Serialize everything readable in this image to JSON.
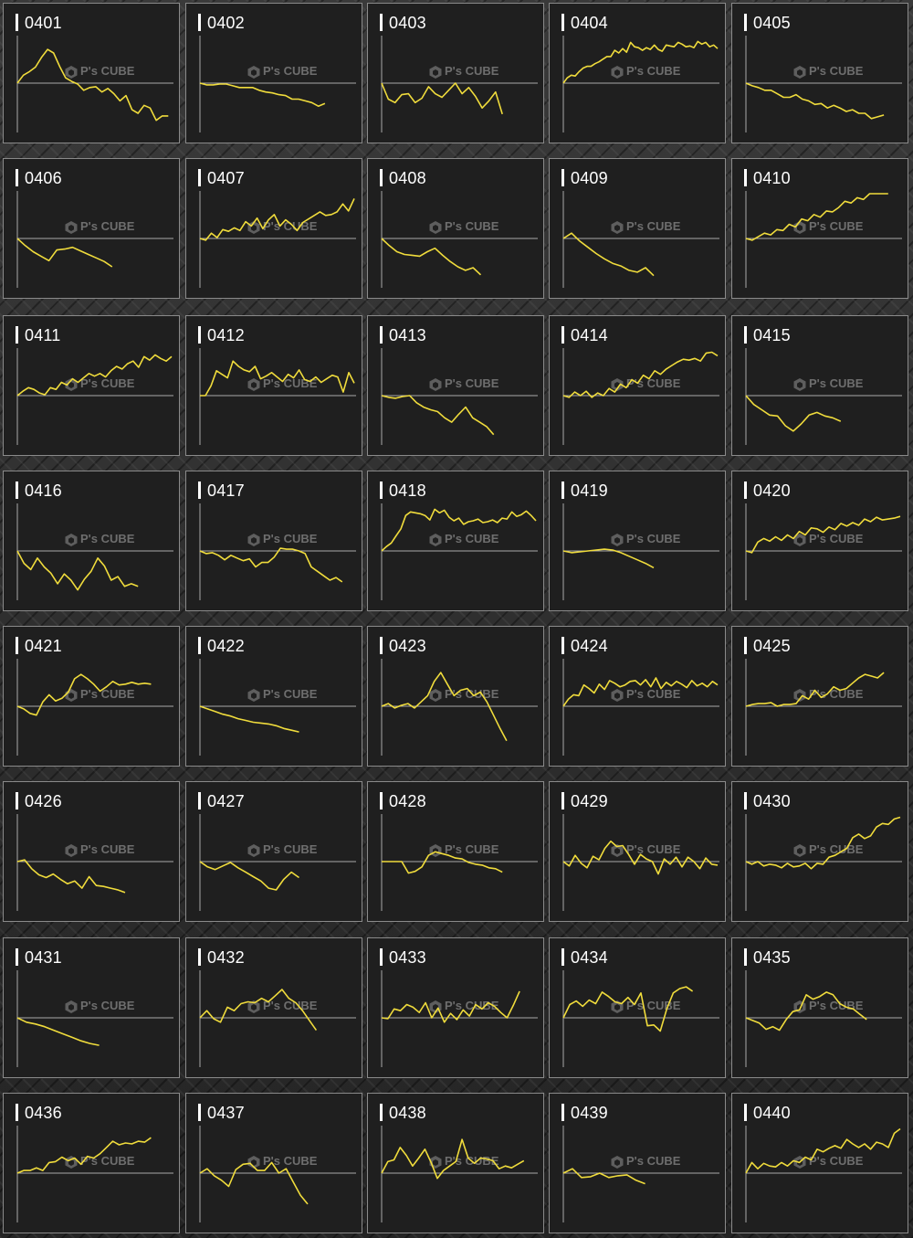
{
  "page": {
    "background": "#2a2a2a"
  },
  "panel_style": {
    "panel_bg": "#1f1f1f",
    "line_color": "#f0dc3c",
    "axis_color": "#aaaaaa",
    "label_color": "#ffffff"
  },
  "watermark": {
    "text": "P's CUBE",
    "icon": "cube-icon"
  },
  "chart_data": [
    {
      "label": "0401",
      "type": "line",
      "ylim": [
        -60,
        60
      ],
      "values": [
        0,
        9,
        13,
        18,
        29,
        38,
        34,
        19,
        6,
        2,
        -1,
        -8,
        -5,
        -4,
        -10,
        -6,
        -12,
        -20,
        -14,
        -30,
        -34,
        -25,
        -28,
        -42,
        -37,
        -37
      ]
    },
    {
      "label": "0402",
      "type": "line",
      "ylim": [
        -60,
        60
      ],
      "values": [
        0,
        -2,
        -2,
        -1,
        -1,
        -3,
        -5,
        -5,
        -5,
        -8,
        -10,
        -11,
        -13,
        -14,
        -18,
        -18,
        -20,
        -22,
        -26,
        -23
      ]
    },
    {
      "label": "0403",
      "type": "line",
      "ylim": [
        -60,
        60
      ],
      "values": [
        0,
        -18,
        -22,
        -13,
        -12,
        -22,
        -17,
        -4,
        -12,
        -16,
        -8,
        0,
        -12,
        -5,
        -15,
        -28,
        -20,
        -10,
        -35
      ]
    },
    {
      "label": "0404",
      "type": "line",
      "ylim": [
        -60,
        60
      ],
      "values": [
        0,
        6,
        9,
        8,
        13,
        17,
        19,
        19,
        22,
        24,
        27,
        30,
        30,
        37,
        34,
        39,
        35,
        46,
        41,
        40,
        37,
        40,
        38,
        43,
        38,
        36,
        43,
        42,
        41,
        46,
        44,
        41,
        42,
        40,
        47,
        44,
        46,
        41,
        43,
        39
      ]
    },
    {
      "label": "0405",
      "type": "line",
      "ylim": [
        -60,
        60
      ],
      "values": [
        0,
        -3,
        -5,
        -8,
        -8,
        -12,
        -16,
        -16,
        -13,
        -18,
        -20,
        -24,
        -23,
        -28,
        -25,
        -28,
        -32,
        -30,
        -34,
        -34,
        -40,
        -38,
        -36
      ]
    },
    {
      "label": "0406",
      "type": "line",
      "ylim": [
        -60,
        60
      ],
      "values": [
        0,
        -8,
        -15,
        -20,
        -25,
        -13,
        -12,
        -10,
        -14,
        -18,
        -22,
        -26,
        -32
      ]
    },
    {
      "label": "0407",
      "type": "line",
      "ylim": [
        -60,
        60
      ],
      "values": [
        0,
        -2,
        6,
        1,
        10,
        8,
        12,
        9,
        19,
        14,
        23,
        11,
        21,
        27,
        14,
        21,
        16,
        9,
        18,
        22,
        26,
        30,
        26,
        27,
        30,
        39,
        31,
        45
      ]
    },
    {
      "label": "0408",
      "type": "line",
      "ylim": [
        -60,
        60
      ],
      "values": [
        0,
        -8,
        -15,
        -18,
        -19,
        -20,
        -15,
        -11,
        -19,
        -26,
        -32,
        -36,
        -33,
        -41
      ]
    },
    {
      "label": "0409",
      "type": "line",
      "ylim": [
        -60,
        60
      ],
      "values": [
        0,
        6,
        -3,
        -10,
        -17,
        -23,
        -28,
        -31,
        -36,
        -38,
        -33,
        -42
      ]
    },
    {
      "label": "0410",
      "type": "line",
      "ylim": [
        -60,
        60
      ],
      "values": [
        0,
        -2,
        2,
        6,
        4,
        10,
        9,
        16,
        13,
        22,
        20,
        27,
        24,
        31,
        30,
        35,
        42,
        40,
        46,
        44,
        52,
        58,
        56,
        53
      ]
    },
    {
      "label": "0411",
      "type": "line",
      "ylim": [
        -60,
        60
      ],
      "values": [
        0,
        5,
        9,
        7,
        3,
        1,
        9,
        7,
        15,
        12,
        19,
        15,
        20,
        25,
        22,
        25,
        21,
        28,
        33,
        30,
        36,
        39,
        32,
        44,
        40,
        46,
        42,
        39,
        44
      ]
    },
    {
      "label": "0412",
      "type": "line",
      "ylim": [
        -60,
        60
      ],
      "values": [
        0,
        0,
        11,
        28,
        24,
        20,
        39,
        33,
        29,
        27,
        33,
        19,
        22,
        26,
        21,
        16,
        24,
        20,
        29,
        18,
        16,
        21,
        15,
        19,
        23,
        21,
        4,
        26,
        14
      ]
    },
    {
      "label": "0413",
      "type": "line",
      "ylim": [
        -60,
        60
      ],
      "values": [
        0,
        -2,
        -3,
        -1,
        0,
        -8,
        -13,
        -16,
        -18,
        -25,
        -30,
        -21,
        -13,
        -25,
        -30,
        -35,
        -44
      ]
    },
    {
      "label": "0414",
      "type": "line",
      "ylim": [
        -60,
        60
      ],
      "values": [
        0,
        -2,
        4,
        0,
        5,
        -2,
        3,
        0,
        8,
        4,
        13,
        9,
        18,
        14,
        23,
        19,
        28,
        24,
        30,
        34,
        38,
        41,
        40,
        42,
        39,
        48,
        49,
        45
      ]
    },
    {
      "label": "0415",
      "type": "line",
      "ylim": [
        -60,
        60
      ],
      "values": [
        0,
        -10,
        -16,
        -22,
        -23,
        -34,
        -40,
        -32,
        -22,
        -19,
        -23,
        -25,
        -29
      ]
    },
    {
      "label": "0416",
      "type": "line",
      "ylim": [
        -60,
        60
      ],
      "values": [
        0,
        -14,
        -21,
        -8,
        -18,
        -25,
        -37,
        -26,
        -33,
        -44,
        -32,
        -23,
        -8,
        -17,
        -33,
        -29,
        -40,
        -37,
        -40
      ]
    },
    {
      "label": "0417",
      "type": "line",
      "ylim": [
        -60,
        60
      ],
      "values": [
        0,
        -3,
        -2,
        -5,
        -10,
        -5,
        -8,
        -11,
        -9,
        -18,
        -13,
        -13,
        -7,
        3,
        2,
        2,
        0,
        -3,
        -18,
        -23,
        -28,
        -33,
        -30,
        -35
      ]
    },
    {
      "label": "0418",
      "type": "line",
      "ylim": [
        -60,
        60
      ],
      "values": [
        0,
        5,
        9,
        17,
        25,
        40,
        44,
        43,
        42,
        40,
        35,
        47,
        43,
        46,
        38,
        34,
        37,
        30,
        33,
        34,
        36,
        32,
        33,
        35,
        32,
        37,
        36,
        44,
        39,
        41,
        45,
        40,
        34
      ]
    },
    {
      "label": "0419",
      "type": "line",
      "ylim": [
        -60,
        60
      ],
      "values": [
        0,
        -2,
        -1,
        0,
        1,
        2,
        1,
        -2,
        -6,
        -10,
        -14,
        -19
      ]
    },
    {
      "label": "0420",
      "type": "line",
      "ylim": [
        -60,
        60
      ],
      "values": [
        0,
        -2,
        10,
        14,
        11,
        16,
        12,
        18,
        14,
        22,
        18,
        26,
        25,
        21,
        27,
        24,
        31,
        28,
        32,
        29,
        36,
        33,
        38,
        35,
        36,
        37,
        39
      ]
    },
    {
      "label": "0421",
      "type": "line",
      "ylim": [
        -60,
        60
      ],
      "values": [
        0,
        -3,
        -8,
        -10,
        5,
        13,
        6,
        9,
        16,
        31,
        36,
        31,
        25,
        17,
        22,
        28,
        24,
        25,
        27,
        25,
        26,
        25
      ]
    },
    {
      "label": "0422",
      "type": "line",
      "ylim": [
        -60,
        60
      ],
      "values": [
        0,
        -3,
        -6,
        -9,
        -11,
        -14,
        -16,
        -18,
        -19,
        -20,
        -22,
        -25,
        -27,
        -29
      ]
    },
    {
      "label": "0423",
      "type": "line",
      "ylim": [
        -60,
        60
      ],
      "values": [
        0,
        3,
        -2,
        1,
        3,
        -2,
        5,
        12,
        28,
        38,
        25,
        12,
        18,
        20,
        12,
        16,
        5,
        -10,
        -25,
        -39
      ]
    },
    {
      "label": "0424",
      "type": "line",
      "ylim": [
        -60,
        60
      ],
      "values": [
        0,
        8,
        13,
        12,
        24,
        20,
        15,
        25,
        19,
        29,
        26,
        22,
        24,
        28,
        29,
        24,
        30,
        22,
        32,
        20,
        27,
        23,
        28,
        25,
        21,
        29,
        23,
        26,
        22,
        28,
        24
      ]
    },
    {
      "label": "0425",
      "type": "line",
      "ylim": [
        -60,
        60
      ],
      "values": [
        0,
        2,
        3,
        3,
        4,
        0,
        2,
        2,
        3,
        12,
        8,
        18,
        10,
        14,
        22,
        18,
        20,
        26,
        32,
        36,
        34,
        32,
        38
      ]
    },
    {
      "label": "0426",
      "type": "line",
      "ylim": [
        -60,
        60
      ],
      "values": [
        0,
        2,
        -8,
        -15,
        -18,
        -14,
        -20,
        -25,
        -22,
        -30,
        -17,
        -27,
        -28,
        -30,
        -32,
        -35
      ]
    },
    {
      "label": "0427",
      "type": "line",
      "ylim": [
        -60,
        60
      ],
      "values": [
        0,
        -6,
        -9,
        -5,
        -1,
        -7,
        -12,
        -17,
        -22,
        -30,
        -32,
        -20,
        -12,
        -18
      ]
    },
    {
      "label": "0428",
      "type": "line",
      "ylim": [
        -60,
        60
      ],
      "values": [
        0,
        0,
        0,
        0,
        -13,
        -11,
        -6,
        7,
        11,
        9,
        7,
        4,
        3,
        -1,
        -3,
        -4,
        -7,
        -8,
        -12
      ]
    },
    {
      "label": "0429",
      "type": "line",
      "ylim": [
        -60,
        60
      ],
      "values": [
        0,
        -5,
        7,
        -2,
        -7,
        6,
        2,
        15,
        23,
        17,
        18,
        8,
        -3,
        8,
        3,
        0,
        -14,
        3,
        -3,
        5,
        -6,
        5,
        0,
        -8,
        4,
        -3,
        -4
      ]
    },
    {
      "label": "0430",
      "type": "line",
      "ylim": [
        -60,
        60
      ],
      "values": [
        0,
        -3,
        0,
        -5,
        -3,
        -4,
        -7,
        -2,
        -6,
        -5,
        -2,
        -8,
        -2,
        -3,
        5,
        7,
        11,
        15,
        27,
        31,
        26,
        29,
        39,
        43,
        42,
        48,
        50
      ]
    },
    {
      "label": "0431",
      "type": "line",
      "ylim": [
        -60,
        60
      ],
      "values": [
        0,
        -5,
        -7,
        -10,
        -14,
        -18,
        -22,
        -26,
        -29,
        -31
      ]
    },
    {
      "label": "0432",
      "type": "line",
      "ylim": [
        -60,
        60
      ],
      "values": [
        0,
        8,
        -1,
        -5,
        12,
        8,
        16,
        18,
        17,
        22,
        18,
        25,
        32,
        22,
        17,
        8,
        -3,
        -14
      ]
    },
    {
      "label": "0433",
      "type": "line",
      "ylim": [
        -60,
        60
      ],
      "values": [
        0,
        -1,
        10,
        8,
        15,
        12,
        6,
        17,
        0,
        11,
        -5,
        5,
        -2,
        9,
        2,
        15,
        10,
        17,
        13,
        6,
        0,
        14,
        30
      ]
    },
    {
      "label": "0434",
      "type": "line",
      "ylim": [
        -60,
        60
      ],
      "values": [
        0,
        15,
        19,
        13,
        20,
        16,
        29,
        24,
        18,
        16,
        23,
        15,
        28,
        -9,
        -8,
        -15,
        10,
        28,
        33,
        35,
        30
      ]
    },
    {
      "label": "0435",
      "type": "line",
      "ylim": [
        -60,
        60
      ],
      "values": [
        0,
        -3,
        -6,
        -13,
        -10,
        -14,
        -2,
        7,
        9,
        26,
        21,
        24,
        29,
        26,
        16,
        12,
        10,
        4,
        -2
      ]
    },
    {
      "label": "0436",
      "type": "line",
      "ylim": [
        -60,
        60
      ],
      "values": [
        0,
        3,
        3,
        6,
        3,
        12,
        13,
        18,
        14,
        17,
        10,
        19,
        17,
        22,
        29,
        36,
        32,
        34,
        33,
        36,
        35,
        40
      ]
    },
    {
      "label": "0437",
      "type": "line",
      "ylim": [
        -60,
        60
      ],
      "values": [
        0,
        5,
        -3,
        -8,
        -15,
        4,
        10,
        11,
        3,
        3,
        12,
        0,
        5,
        -10,
        -25,
        -35
      ]
    },
    {
      "label": "0438",
      "type": "line",
      "ylim": [
        -60,
        60
      ],
      "values": [
        0,
        13,
        15,
        29,
        20,
        8,
        17,
        27,
        12,
        -6,
        3,
        8,
        13,
        38,
        17,
        11,
        17,
        16,
        14,
        5,
        8,
        6,
        10,
        14
      ]
    },
    {
      "label": "0439",
      "type": "line",
      "ylim": [
        -60,
        60
      ],
      "values": [
        0,
        5,
        -5,
        -4,
        0,
        -5,
        -3,
        -2,
        -8,
        -12
      ]
    },
    {
      "label": "0440",
      "type": "line",
      "ylim": [
        -60,
        60
      ],
      "values": [
        0,
        12,
        5,
        11,
        8,
        7,
        12,
        8,
        14,
        12,
        18,
        15,
        27,
        24,
        28,
        31,
        28,
        38,
        33,
        29,
        33,
        27,
        35,
        33,
        29,
        45,
        50
      ]
    }
  ]
}
